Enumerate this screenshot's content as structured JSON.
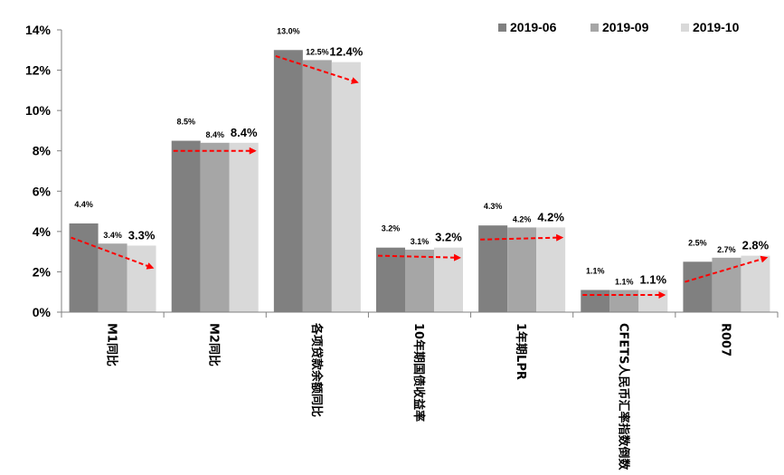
{
  "chart_data": {
    "type": "bar",
    "title": "",
    "xlabel": "",
    "ylabel": "",
    "ylim": [
      0,
      14
    ],
    "y_ticks": [
      "0%",
      "2%",
      "4%",
      "6%",
      "8%",
      "10%",
      "12%",
      "14%"
    ],
    "y_tick_values": [
      0,
      2,
      4,
      6,
      8,
      10,
      12,
      14
    ],
    "grid": false,
    "legend_position": "top-right",
    "categories": [
      "M1同比",
      "M2同比",
      "各项贷款余额同比",
      "10年期国债收益率",
      "1年期LPR",
      "CFETS人民币汇率指数倒数",
      "R007"
    ],
    "series": [
      {
        "name": "2019-06",
        "color": "#808080",
        "values": [
          4.4,
          8.5,
          13.0,
          3.2,
          4.3,
          1.1,
          2.5
        ],
        "labels": [
          "4.4%",
          "8.5%",
          "13.0%",
          "3.2%",
          "4.3%",
          "1.1%",
          "2.5%"
        ]
      },
      {
        "name": "2019-09",
        "color": "#a6a6a6",
        "values": [
          3.4,
          8.4,
          12.5,
          3.1,
          4.2,
          1.1,
          2.7
        ],
        "labels": [
          "3.4%",
          "8.4%",
          "12.5%",
          "3.1%",
          "4.2%",
          "1.1%",
          "2.7%"
        ]
      },
      {
        "name": "2019-10",
        "color": "#d9d9d9",
        "values": [
          3.3,
          8.4,
          12.4,
          3.2,
          4.2,
          1.1,
          2.8
        ],
        "labels": [
          "3.3%",
          "8.4%",
          "12.4%",
          "3.2%",
          "4.2%",
          "1.1%",
          "2.8%"
        ]
      }
    ],
    "trend_arrows": [
      {
        "category": "M1同比",
        "from": 3.7,
        "to": 2.2
      },
      {
        "category": "M2同比",
        "from": 8.0,
        "to": 8.0
      },
      {
        "category": "各项贷款余额同比",
        "from": 12.7,
        "to": 11.4
      },
      {
        "category": "10年期国债收益率",
        "from": 2.8,
        "to": 2.7
      },
      {
        "category": "1年期LPR",
        "from": 3.6,
        "to": 3.7
      },
      {
        "category": "CFETS人民币汇率指数倒数",
        "from": 0.85,
        "to": 0.85
      },
      {
        "category": "R007",
        "from": 1.5,
        "to": 2.7
      }
    ],
    "trend_arrow_color": "#ff0000"
  }
}
